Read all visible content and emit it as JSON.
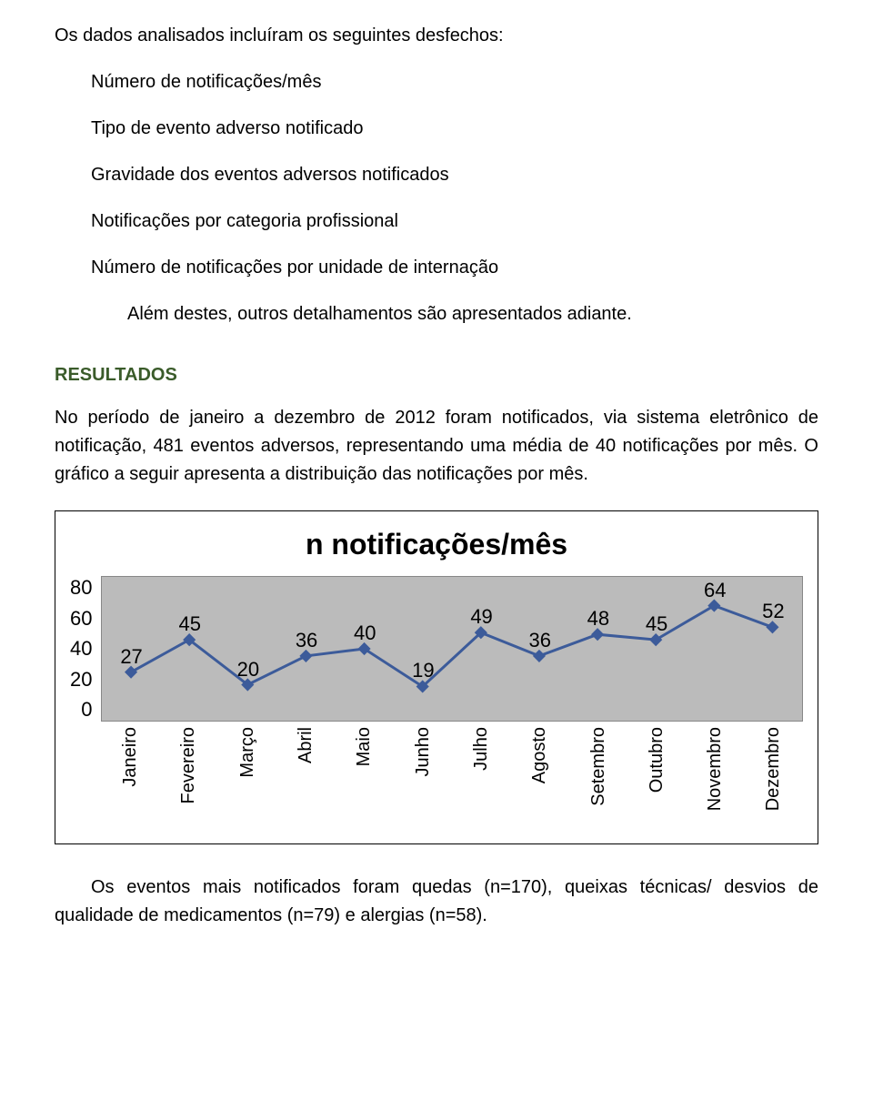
{
  "paragraphs": {
    "intro": "Os dados analisados incluíram os seguintes desfechos:",
    "b1": "Número de notificações/mês",
    "b2": "Tipo de evento adverso notificado",
    "b3": "Gravidade dos eventos adversos notificados",
    "b4": "Notificações por categoria profissional",
    "b5": "Número de notificações por unidade de internação",
    "b6": "Além destes, outros detalhamentos são apresentados adiante.",
    "resultados_label": "RESULTADOS",
    "resultados_body": "No período de janeiro a dezembro de 2012 foram notificados, via sistema eletrônico de notificação, 481 eventos adversos, representando uma média de 40 notificações por mês. O gráfico a seguir apresenta a distribuição das notificações por mês.",
    "footer": "Os eventos mais notificados foram quedas (n=170), queixas técnicas/ desvios de qualidade de medicamentos (n=79) e alergias (n=58)."
  },
  "chart": {
    "type": "line",
    "title": "n notificações/mês",
    "title_fontsize": 32,
    "background_color": "#bbbbbb",
    "area_border_color": "#888888",
    "line_color": "#3c5b9a",
    "marker_color": "#3c5b9a",
    "marker_shape": "diamond",
    "marker_size": 10,
    "line_width": 3,
    "label_fontsize": 22,
    "ylim": [
      0,
      80
    ],
    "ytick_step": 20,
    "yticks": [
      "80",
      "60",
      "40",
      "20",
      "0"
    ],
    "categories": [
      "Janeiro",
      "Fevereiro",
      "Março",
      "Abril",
      "Maio",
      "Junho",
      "Julho",
      "Agosto",
      "Setembro",
      "Outubro",
      "Novembro",
      "Dezembro"
    ],
    "values": [
      27,
      45,
      20,
      36,
      40,
      19,
      49,
      36,
      48,
      45,
      64,
      52
    ]
  }
}
